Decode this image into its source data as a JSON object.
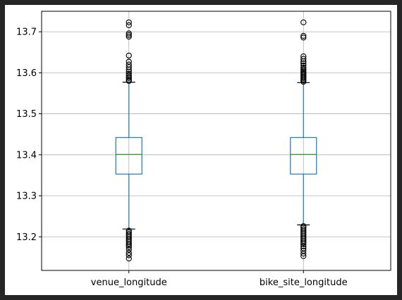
{
  "chart_data": {
    "type": "boxplot",
    "title": "",
    "xlabel": "",
    "ylabel": "",
    "ylim": [
      13.118,
      13.75
    ],
    "yticks": [
      13.2,
      13.3,
      13.4,
      13.5,
      13.6,
      13.7
    ],
    "ytick_labels": [
      "13.2",
      "13.3",
      "13.4",
      "13.5",
      "13.6",
      "13.7"
    ],
    "grid": true,
    "categories": [
      "venue_longitude",
      "bike_site_longitude"
    ],
    "boxes": [
      {
        "name": "venue_longitude",
        "q1": 13.353,
        "median": 13.401,
        "q3": 13.442,
        "whisker_low": 13.219,
        "whisker_high": 13.577,
        "outliers_high": [
          13.58,
          13.583,
          13.587,
          13.59,
          13.594,
          13.598,
          13.603,
          13.608,
          13.614,
          13.62,
          13.627,
          13.642,
          13.688,
          13.692,
          13.696,
          13.716,
          13.723
        ],
        "outliers_low": [
          13.215,
          13.211,
          13.207,
          13.203,
          13.199,
          13.195,
          13.191,
          13.187,
          13.183,
          13.179,
          13.175,
          13.169,
          13.161,
          13.155,
          13.147
        ]
      },
      {
        "name": "bike_site_longitude",
        "q1": 13.353,
        "median": 13.401,
        "q3": 13.442,
        "whisker_low": 13.229,
        "whisker_high": 13.576,
        "outliers_high": [
          13.578,
          13.581,
          13.584,
          13.587,
          13.59,
          13.593,
          13.596,
          13.599,
          13.602,
          13.605,
          13.609,
          13.613,
          13.618,
          13.623,
          13.628,
          13.634,
          13.64,
          13.686,
          13.69,
          13.723
        ],
        "outliers_low": [
          13.226,
          13.222,
          13.218,
          13.214,
          13.21,
          13.206,
          13.202,
          13.198,
          13.194,
          13.19,
          13.186,
          13.182,
          13.177,
          13.172,
          13.166,
          13.159,
          13.153
        ]
      }
    ],
    "colors": {
      "box": "#1f77b4",
      "median": "#2ca02c",
      "whisker_cap": "#000000",
      "outlier": "#000000",
      "grid": "#b0b0b0",
      "axes": "#000000"
    }
  }
}
